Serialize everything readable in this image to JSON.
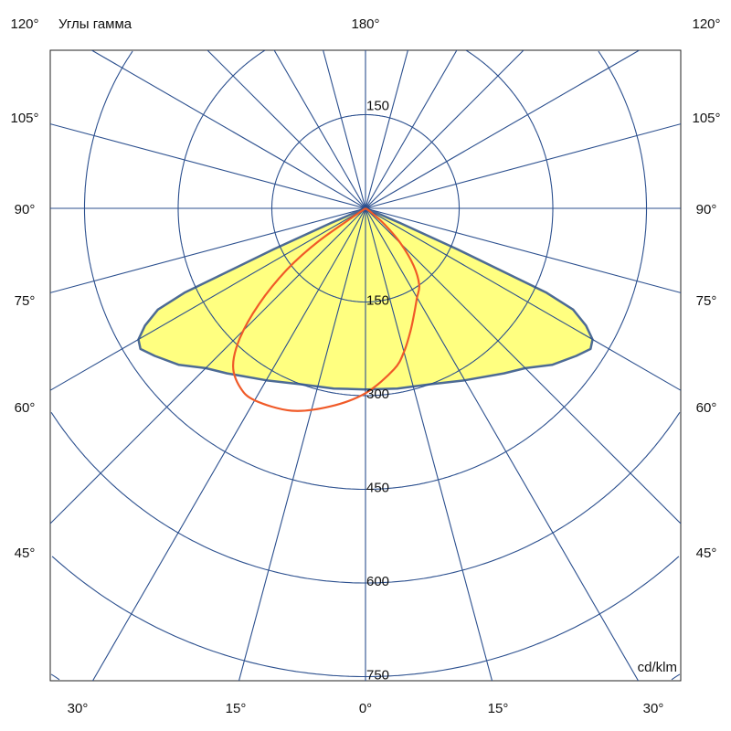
{
  "chart_data": {
    "type": "polar",
    "title": "Углы гамма",
    "unit_label": "cd/klm",
    "top_label": "180°",
    "side_labels": [
      "120°",
      "105°",
      "90°",
      "75°",
      "60°",
      "45°"
    ],
    "bottom_labels": [
      "30°",
      "15°",
      "0°",
      "15°",
      "30°"
    ],
    "radial_ticks_down": [
      "150",
      "300",
      "450",
      "600",
      "750"
    ],
    "radial_ticks_up": [
      "150"
    ],
    "radial_step": 150,
    "radial_max_circle": 1050,
    "angle_step_deg": 15,
    "grid": true,
    "colors": {
      "grid": "#2b4f8e",
      "fill": "#ffff80",
      "fill_outline": "#4d6b95",
      "curve": "#f05a28"
    },
    "series": [
      {
        "plane": "C0-C180 (symmetric, filled)",
        "gamma": [
          0,
          10,
          20,
          30,
          40,
          45,
          50,
          55,
          58,
          60,
          62,
          64,
          65,
          66,
          67,
          68,
          70,
          90
        ],
        "intensity": [
          290,
          293,
          300,
          318,
          345,
          362,
          390,
          412,
          425,
          420,
          400,
          370,
          320,
          160,
          60,
          15,
          0,
          0
        ]
      },
      {
        "plane": "C90-C270 (asymmetric, red)",
        "gamma": [
          -60,
          -55,
          -52,
          -48,
          -44,
          -40,
          -35,
          -30,
          -20,
          -10,
          0,
          10,
          15,
          20,
          25,
          30,
          35,
          40,
          45,
          50,
          55,
          60
        ],
        "intensity": [
          0,
          90,
          160,
          230,
          290,
          330,
          350,
          355,
          345,
          322,
          296,
          262,
          238,
          210,
          185,
          165,
          150,
          120,
          80,
          40,
          10,
          0
        ]
      }
    ]
  }
}
